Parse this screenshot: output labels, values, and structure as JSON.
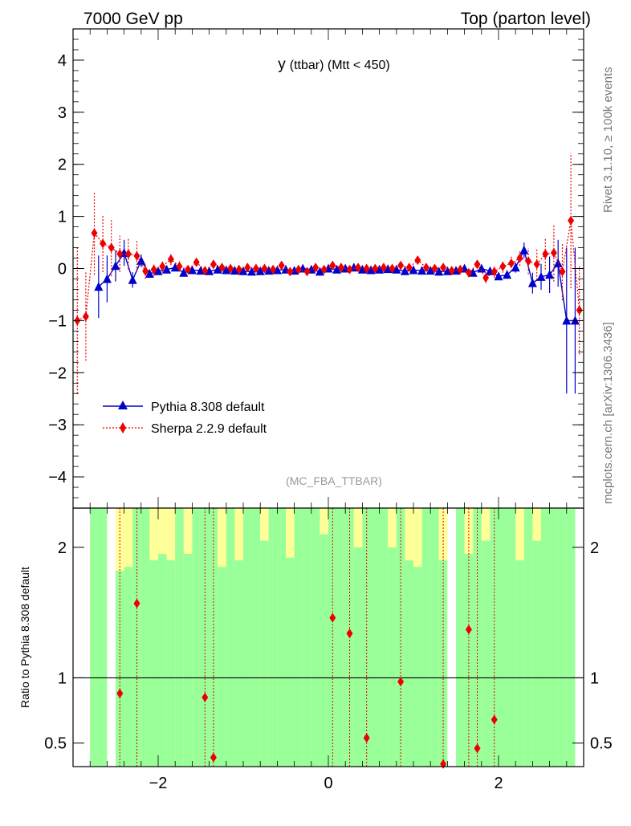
{
  "header": {
    "left": "7000 GeV pp",
    "right": "Top (parton level)"
  },
  "plot_title_main": "y",
  "plot_title_sub": "(ttbar) (Mtt < 450)",
  "watermark": "(MC_FBA_TTBAR)",
  "side_text_top": "Rivet 3.1.10, ≥ 100k events",
  "side_text_bottom": "mcplots.cern.ch [arXiv:1306.3436]",
  "ratio_ylabel": "Ratio to Pythia 8.308 default",
  "colors": {
    "pythia": "#0000cc",
    "sherpa": "#ee0000",
    "band_green": "#99ff99",
    "band_yellow": "#ffff99"
  },
  "chart_data": [
    {
      "type": "line",
      "xlim": [
        -3.0,
        3.0
      ],
      "ylim": [
        -4.6,
        4.6
      ],
      "x_ticks": [
        -2,
        0,
        2
      ],
      "y_ticks": [
        -4,
        -3,
        -2,
        -1,
        0,
        1,
        2,
        3,
        4
      ],
      "legend": "upper-left, below center",
      "series": [
        {
          "name": "Pythia 8.308 default",
          "marker": "triangle",
          "x": [
            -2.9,
            -2.7,
            -2.6,
            -2.5,
            -2.4,
            -2.3,
            -2.2,
            -2.1,
            -2.0,
            -1.9,
            -1.8,
            -1.7,
            -1.6,
            -1.5,
            -1.4,
            -1.3,
            -1.2,
            -1.1,
            -1.0,
            -0.9,
            -0.8,
            -0.7,
            -0.6,
            -0.5,
            -0.4,
            -0.3,
            -0.2,
            -0.1,
            0.0,
            0.1,
            0.2,
            0.3,
            0.4,
            0.5,
            0.6,
            0.7,
            0.8,
            0.9,
            1.0,
            1.1,
            1.2,
            1.3,
            1.4,
            1.5,
            1.6,
            1.7,
            1.8,
            1.9,
            2.0,
            2.1,
            2.2,
            2.3,
            2.4,
            2.5,
            2.6,
            2.7,
            2.8,
            2.9
          ],
          "y": [
            null,
            -0.35,
            -0.2,
            0.05,
            0.3,
            -0.22,
            0.15,
            -0.1,
            -0.05,
            -0.02,
            0.02,
            -0.08,
            -0.03,
            -0.04,
            -0.05,
            -0.02,
            -0.03,
            -0.04,
            -0.05,
            -0.06,
            -0.05,
            -0.04,
            -0.03,
            -0.02,
            -0.04,
            0.0,
            -0.02,
            -0.06,
            0.0,
            -0.02,
            0.0,
            0.02,
            -0.02,
            -0.03,
            -0.02,
            -0.01,
            -0.02,
            -0.05,
            -0.03,
            -0.04,
            -0.04,
            -0.06,
            -0.05,
            -0.04,
            0.0,
            -0.08,
            0.0,
            -0.05,
            -0.15,
            -0.12,
            0.02,
            0.35,
            -0.28,
            -0.16,
            -0.12,
            0.1,
            -1.0,
            -1.0
          ],
          "yerr": [
            null,
            0.6,
            0.45,
            0.3,
            0.25,
            0.15,
            0.12,
            0.08,
            0.06,
            0.05,
            0.05,
            0.05,
            0.05,
            0.04,
            0.04,
            0.04,
            0.04,
            0.04,
            0.04,
            0.04,
            0.04,
            0.04,
            0.04,
            0.04,
            0.04,
            0.04,
            0.04,
            0.04,
            0.04,
            0.04,
            0.04,
            0.04,
            0.04,
            0.04,
            0.04,
            0.04,
            0.04,
            0.04,
            0.04,
            0.04,
            0.04,
            0.04,
            0.04,
            0.04,
            0.05,
            0.05,
            0.05,
            0.05,
            0.06,
            0.08,
            0.1,
            0.15,
            0.2,
            0.25,
            0.35,
            0.45,
            1.4,
            1.4
          ]
        },
        {
          "name": "Sherpa 2.2.9 default",
          "marker": "diamond",
          "x": [
            -2.95,
            -2.85,
            -2.75,
            -2.65,
            -2.55,
            -2.45,
            -2.35,
            -2.25,
            -2.15,
            -2.05,
            -1.95,
            -1.85,
            -1.75,
            -1.65,
            -1.55,
            -1.45,
            -1.35,
            -1.25,
            -1.15,
            -1.05,
            -0.95,
            -0.85,
            -0.75,
            -0.65,
            -0.55,
            -0.45,
            -0.35,
            -0.25,
            -0.15,
            -0.05,
            0.05,
            0.15,
            0.25,
            0.35,
            0.45,
            0.55,
            0.65,
            0.75,
            0.85,
            0.95,
            1.05,
            1.15,
            1.25,
            1.35,
            1.45,
            1.55,
            1.65,
            1.75,
            1.85,
            1.95,
            2.05,
            2.15,
            2.25,
            2.35,
            2.45,
            2.55,
            2.65,
            2.75,
            2.85,
            2.95
          ],
          "y": [
            -1.0,
            -0.92,
            0.68,
            0.48,
            0.4,
            0.28,
            0.28,
            0.24,
            -0.05,
            -0.02,
            0.04,
            0.18,
            0.04,
            -0.02,
            0.12,
            -0.04,
            0.08,
            0.02,
            0.0,
            -0.02,
            0.02,
            0.0,
            0.0,
            -0.02,
            0.06,
            -0.06,
            -0.02,
            -0.06,
            0.02,
            -0.02,
            0.06,
            0.02,
            -0.02,
            0.02,
            0.0,
            0.0,
            0.02,
            0.0,
            0.06,
            0.02,
            0.16,
            0.02,
            0.0,
            0.02,
            -0.04,
            -0.02,
            -0.08,
            0.08,
            -0.18,
            -0.06,
            0.04,
            0.1,
            0.2,
            0.14,
            0.08,
            0.28,
            0.3,
            -0.06,
            0.92,
            -0.8
          ],
          "yerr": [
            1.4,
            0.85,
            0.8,
            0.55,
            0.55,
            0.35,
            0.3,
            0.3,
            0.15,
            0.12,
            0.12,
            0.12,
            0.1,
            0.08,
            0.08,
            0.08,
            0.08,
            0.06,
            0.06,
            0.06,
            0.05,
            0.05,
            0.05,
            0.05,
            0.05,
            0.05,
            0.05,
            0.05,
            0.05,
            0.05,
            0.05,
            0.05,
            0.05,
            0.05,
            0.05,
            0.05,
            0.05,
            0.05,
            0.05,
            0.05,
            0.05,
            0.05,
            0.05,
            0.05,
            0.06,
            0.06,
            0.08,
            0.08,
            0.1,
            0.12,
            0.12,
            0.15,
            0.15,
            0.25,
            0.3,
            0.3,
            0.55,
            0.55,
            1.3,
            0.85
          ]
        }
      ]
    },
    {
      "type": "line",
      "ylabel": "Ratio to Pythia 8.308 default",
      "xlim": [
        -3.0,
        3.0
      ],
      "ylim": [
        0.32,
        2.3
      ],
      "x_ticks": [
        -2,
        0,
        2
      ],
      "y_ticks": [
        0.5,
        1,
        2
      ],
      "bands": {
        "x_edges": [
          -2.8,
          -2.6,
          -2.5,
          -2.4,
          -2.3,
          -2.2,
          -2.1,
          -2.0,
          -1.9,
          -1.8,
          -1.7,
          -1.6,
          -1.5,
          -1.4,
          -1.3,
          -1.2,
          -1.1,
          -1.0,
          -0.9,
          -0.8,
          -0.7,
          -0.6,
          -0.5,
          -0.4,
          -0.3,
          -0.2,
          -0.1,
          0.0,
          0.1,
          0.2,
          0.3,
          0.4,
          0.5,
          0.6,
          0.7,
          0.8,
          0.9,
          1.0,
          1.1,
          1.2,
          1.3,
          1.4,
          1.5,
          1.6,
          1.7,
          1.8,
          1.9,
          2.0,
          2.1,
          2.2,
          2.3,
          2.4,
          2.5,
          2.6,
          2.7,
          2.8,
          2.9
        ],
        "green_present": [
          1,
          0,
          1,
          1,
          1,
          1,
          1,
          1,
          1,
          1,
          1,
          1,
          1,
          1,
          1,
          1,
          1,
          1,
          1,
          1,
          1,
          1,
          1,
          1,
          1,
          1,
          1,
          1,
          1,
          1,
          1,
          1,
          1,
          1,
          1,
          1,
          1,
          1,
          1,
          1,
          1,
          0,
          1,
          1,
          1,
          1,
          1,
          1,
          1,
          1,
          1,
          1,
          1,
          1,
          1,
          1
        ],
        "green_top": [
          2.3,
          2.3,
          1.82,
          1.85,
          2.3,
          2.3,
          1.9,
          1.95,
          1.9,
          2.3,
          1.95,
          2.3,
          2.3,
          2.3,
          1.85,
          2.3,
          1.9,
          2.3,
          2.3,
          2.05,
          2.3,
          2.3,
          1.92,
          2.3,
          2.3,
          2.3,
          2.1,
          2.3,
          2.3,
          2.3,
          2.0,
          2.3,
          2.3,
          2.3,
          2.0,
          2.3,
          1.9,
          1.85,
          2.3,
          2.3,
          1.9,
          2.3,
          2.3,
          1.95,
          2.3,
          2.05,
          2.3,
          2.3,
          2.3,
          1.9,
          2.3,
          2.05,
          2.3,
          2.3,
          2.3,
          2.3
        ],
        "yellow_top": [
          2.3,
          2.3,
          2.3,
          2.3,
          2.3,
          2.3,
          2.3,
          2.3,
          2.3,
          2.3,
          2.3,
          2.3,
          2.3,
          2.3,
          2.3,
          2.3,
          2.3,
          2.3,
          2.3,
          2.3,
          2.3,
          2.3,
          2.3,
          2.3,
          2.3,
          2.3,
          2.3,
          2.3,
          2.3,
          2.3,
          2.3,
          2.3,
          2.3,
          2.3,
          2.3,
          2.3,
          2.3,
          2.3,
          2.3,
          2.3,
          2.3,
          2.3,
          2.3,
          2.3,
          2.3,
          2.3,
          2.3,
          2.3,
          2.3,
          2.3,
          2.3,
          2.3,
          2.3,
          2.3,
          2.3,
          2.3
        ],
        "yellow_bottom_low": [
          0.32,
          0.32,
          0.32,
          0.32,
          0.32,
          0.32,
          0.32,
          0.32,
          0.32,
          0.32,
          0.32,
          0.32,
          0.32,
          0.32,
          0.32,
          0.32,
          0.32,
          0.32,
          0.32,
          0.32,
          0.32,
          0.32,
          0.32,
          0.32,
          0.32,
          0.32,
          0.32,
          0.32,
          0.32,
          0.32,
          0.32,
          0.32,
          0.32,
          0.32,
          0.32,
          0.32,
          0.32,
          0.32,
          0.32,
          0.32,
          0.32,
          0.32,
          0.32,
          0.32,
          0.32,
          0.32,
          0.32,
          0.32,
          0.32,
          0.32,
          0.32,
          0.32,
          0.32,
          0.32,
          0.32,
          0.32
        ]
      },
      "series": [
        {
          "name": "Sherpa 2.2.9 default",
          "marker": "diamond",
          "x": [
            -2.45,
            -2.25,
            -1.45,
            -1.35,
            0.05,
            0.25,
            0.45,
            0.85,
            1.35,
            1.65,
            1.75,
            1.95
          ],
          "y": [
            0.88,
            1.57,
            0.85,
            0.39,
            1.46,
            1.34,
            0.54,
            0.97,
            0.34,
            1.37,
            0.46,
            0.68
          ]
        }
      ]
    }
  ]
}
